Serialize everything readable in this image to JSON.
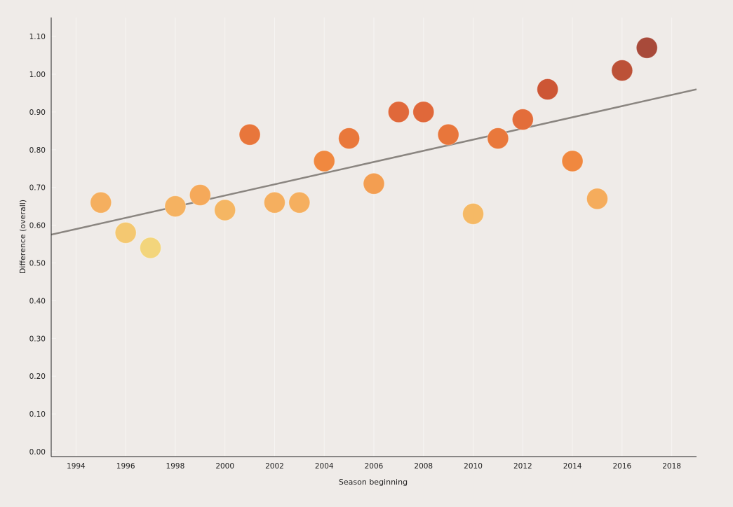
{
  "chart_data": {
    "type": "scatter",
    "title": "",
    "xlabel": "Season beginning",
    "ylabel": "Difference (overall)",
    "xlim": [
      1993,
      2019
    ],
    "ylim": [
      0,
      1.1
    ],
    "x_ticks": [
      "1994",
      "1996",
      "1998",
      "2000",
      "2002",
      "2004",
      "2006",
      "2008",
      "2010",
      "2012",
      "2014",
      "2016",
      "2018"
    ],
    "y_ticks": [
      "0.00",
      "0.10",
      "0.20",
      "0.30",
      "0.40",
      "0.50",
      "0.60",
      "0.70",
      "0.80",
      "0.90",
      "1.00",
      "1.10"
    ],
    "points": [
      {
        "x": 1995,
        "y": 0.66
      },
      {
        "x": 1996,
        "y": 0.58
      },
      {
        "x": 1997,
        "y": 0.54
      },
      {
        "x": 1998,
        "y": 0.65
      },
      {
        "x": 1999,
        "y": 0.68
      },
      {
        "x": 2000,
        "y": 0.64
      },
      {
        "x": 2001,
        "y": 0.84
      },
      {
        "x": 2002,
        "y": 0.66
      },
      {
        "x": 2003,
        "y": 0.66
      },
      {
        "x": 2004,
        "y": 0.77
      },
      {
        "x": 2005,
        "y": 0.83
      },
      {
        "x": 2006,
        "y": 0.71
      },
      {
        "x": 2007,
        "y": 0.9
      },
      {
        "x": 2008,
        "y": 0.9
      },
      {
        "x": 2009,
        "y": 0.84
      },
      {
        "x": 2010,
        "y": 0.63
      },
      {
        "x": 2011,
        "y": 0.83
      },
      {
        "x": 2012,
        "y": 0.88
      },
      {
        "x": 2013,
        "y": 0.96
      },
      {
        "x": 2014,
        "y": 0.77
      },
      {
        "x": 2015,
        "y": 0.67
      },
      {
        "x": 2016,
        "y": 1.01
      },
      {
        "x": 2017,
        "y": 1.07
      }
    ],
    "trendline": {
      "x": [
        1993,
        2019
      ],
      "y": [
        0.575,
        0.96
      ],
      "color": "#8a8580"
    },
    "color_scale": [
      {
        "value": 0.54,
        "color": "#f3d57c"
      },
      {
        "value": 0.6,
        "color": "#f5c26c"
      },
      {
        "value": 0.68,
        "color": "#f5a95a"
      },
      {
        "value": 0.78,
        "color": "#ef843c"
      },
      {
        "value": 0.9,
        "color": "#e0683a"
      },
      {
        "value": 0.96,
        "color": "#cd5635"
      },
      {
        "value": 1.07,
        "color": "#a84a3a"
      }
    ],
    "grid": false,
    "legend": "none"
  }
}
